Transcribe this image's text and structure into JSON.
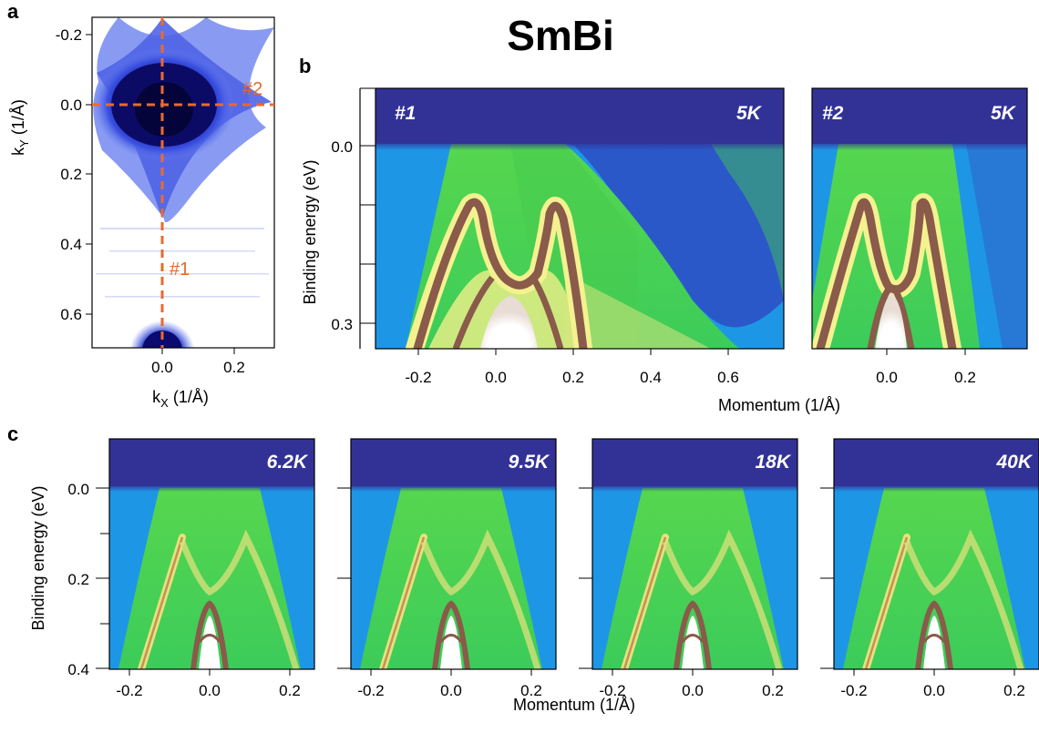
{
  "title": "SmBi",
  "colors": {
    "map_bg": "#ffffff",
    "map_mid": "#3a4fe0",
    "map_dark": "#0c0c6e",
    "cut_line": "#ea6a2e",
    "arpes_top": "#323296",
    "arpes_blue": "#2a8fe0",
    "arpes_green": "#2ed060",
    "arpes_yellow": "#f4f290",
    "arpes_brown": "#8a5a4a",
    "arpes_white": "#ffffff"
  },
  "panel_a": {
    "letter": "a",
    "xlabel_main": "k",
    "xlabel_sub": "X",
    "xlabel_unit": " (1/Å)",
    "ylabel_main": "k",
    "ylabel_sub": "Y",
    "ylabel_unit": " (1/Å)",
    "xticks": [
      "0.0",
      "0.2"
    ],
    "yticks": [
      "-0.2",
      "0.0",
      "0.2",
      "0.4",
      "0.6"
    ],
    "cut1_label": "#1",
    "cut2_label": "#2"
  },
  "panel_b": {
    "letter": "b",
    "ylabel": "Binding energy (eV)",
    "xlabel": "Momentum (1/Å)",
    "yticks": [
      "0.0",
      "0.3"
    ],
    "left": {
      "cut": "#1",
      "temp": "5K",
      "xticks": [
        "-0.2",
        "0.0",
        "0.2",
        "0.4",
        "0.6"
      ]
    },
    "right": {
      "cut": "#2",
      "temp": "5K",
      "xticks": [
        "0.0",
        "0.2"
      ]
    }
  },
  "panel_c": {
    "letter": "c",
    "ylabel": "Binding energy (eV)",
    "xlabel": "Momentum (1/Å)",
    "yticks": [
      "0.0",
      "0.2",
      "0.4"
    ],
    "xticks": [
      "-0.2",
      "0.0",
      "0.2"
    ],
    "temps": [
      "6.2K",
      "9.5K",
      "18K",
      "40K"
    ]
  }
}
